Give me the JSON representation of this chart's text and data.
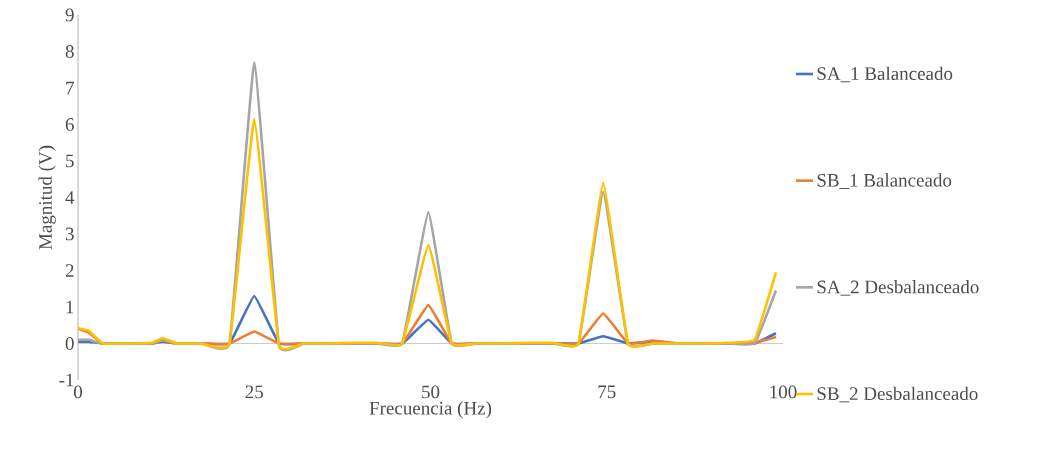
{
  "chart_data": {
    "type": "line",
    "xlabel": "Frecuencia (Hz)",
    "ylabel": "Magnitud (V)",
    "x": [
      0,
      1.5,
      3.5,
      7,
      10.5,
      12,
      14,
      17.5,
      21.5,
      25,
      28.5,
      32,
      35.5,
      39,
      42.5,
      46,
      49.7,
      53,
      56.5,
      60,
      64,
      67.5,
      71,
      74.5,
      78,
      81.5,
      85,
      88.5,
      92,
      96,
      99
    ],
    "series": [
      {
        "name": "SA_1 Balanceado",
        "color": "#4472c4",
        "values": [
          0.05,
          0.05,
          0,
          0,
          0,
          0.05,
          0,
          0,
          0,
          1.3,
          0,
          0,
          0,
          0,
          0,
          0,
          0.65,
          0,
          0,
          0,
          0,
          0,
          0,
          0.2,
          0,
          0.05,
          0,
          0,
          0,
          0,
          0.28
        ]
      },
      {
        "name": "SB_1 Balanceado",
        "color": "#ed7d31",
        "values": [
          0.4,
          0.3,
          0,
          0,
          0,
          0.08,
          0,
          0,
          0,
          0.33,
          0,
          0,
          0,
          0,
          0,
          0,
          1.05,
          0,
          0,
          0,
          0,
          0,
          0,
          0.82,
          0,
          0.08,
          0,
          0,
          0,
          0.02,
          0.18
        ]
      },
      {
        "name": "SA_2 Desbalanceado",
        "color": "#a5a5a5",
        "values": [
          0.1,
          0.1,
          0,
          0,
          0,
          0.1,
          0,
          0,
          0,
          7.7,
          -0.05,
          0,
          0,
          0,
          0,
          0,
          3.6,
          0,
          0,
          0,
          0,
          0,
          0,
          4.15,
          0,
          0,
          0,
          0,
          0,
          0,
          1.45
        ]
      },
      {
        "name": "SB_2 Desbalanceado",
        "color": "#ffc000",
        "values": [
          0.42,
          0.35,
          0,
          0,
          0.02,
          0.15,
          0,
          0,
          0,
          6.15,
          -0.05,
          0,
          0,
          0.02,
          0.02,
          0,
          2.7,
          0,
          0,
          0,
          0.02,
          0.02,
          0,
          4.4,
          0,
          0,
          0,
          0,
          0.02,
          0.1,
          1.95
        ]
      }
    ],
    "xlim": [
      0,
      100
    ],
    "ylim": [
      -1,
      9
    ],
    "xticks": [
      0,
      25,
      50,
      75,
      100
    ],
    "yticks": [
      -1,
      0,
      1,
      2,
      3,
      4,
      5,
      6,
      7,
      8,
      9
    ],
    "legend": "right",
    "grid": false,
    "marker": "none",
    "line_style": "solid"
  }
}
